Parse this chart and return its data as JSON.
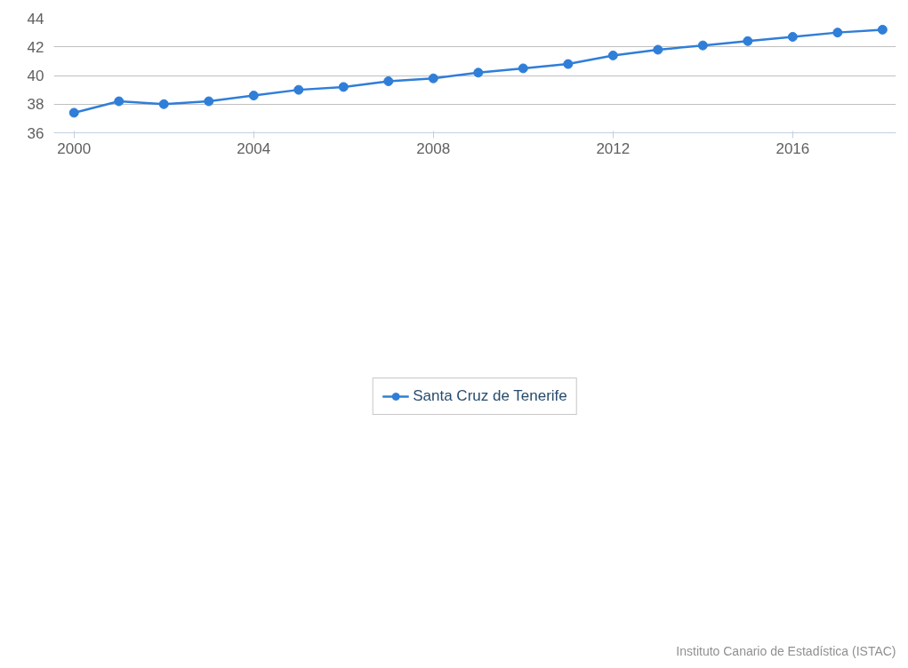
{
  "chart_data": {
    "type": "line",
    "x": [
      2000,
      2001,
      2002,
      2003,
      2004,
      2005,
      2006,
      2007,
      2008,
      2009,
      2010,
      2011,
      2012,
      2013,
      2014,
      2015,
      2016,
      2017,
      2018
    ],
    "series": [
      {
        "name": "Santa Cruz de Tenerife",
        "color": "#2f7ed8",
        "values": [
          37.4,
          38.2,
          38.0,
          38.2,
          38.6,
          39.0,
          39.2,
          39.6,
          39.8,
          40.2,
          40.5,
          40.8,
          41.4,
          41.8,
          42.1,
          42.4,
          42.7,
          43.0,
          43.2
        ]
      }
    ],
    "xlim": [
      1999.55,
      2018.3
    ],
    "xticks": [
      2000,
      2004,
      2008,
      2012,
      2016
    ],
    "ylim": [
      36,
      44
    ],
    "yticks": [
      36,
      38,
      40,
      42,
      44
    ],
    "grid": "y",
    "legend": "bottom",
    "marker": "circle",
    "line_style": "solid",
    "annotations": [
      "Instituto Canario de Estadística (ISTAC)"
    ]
  }
}
